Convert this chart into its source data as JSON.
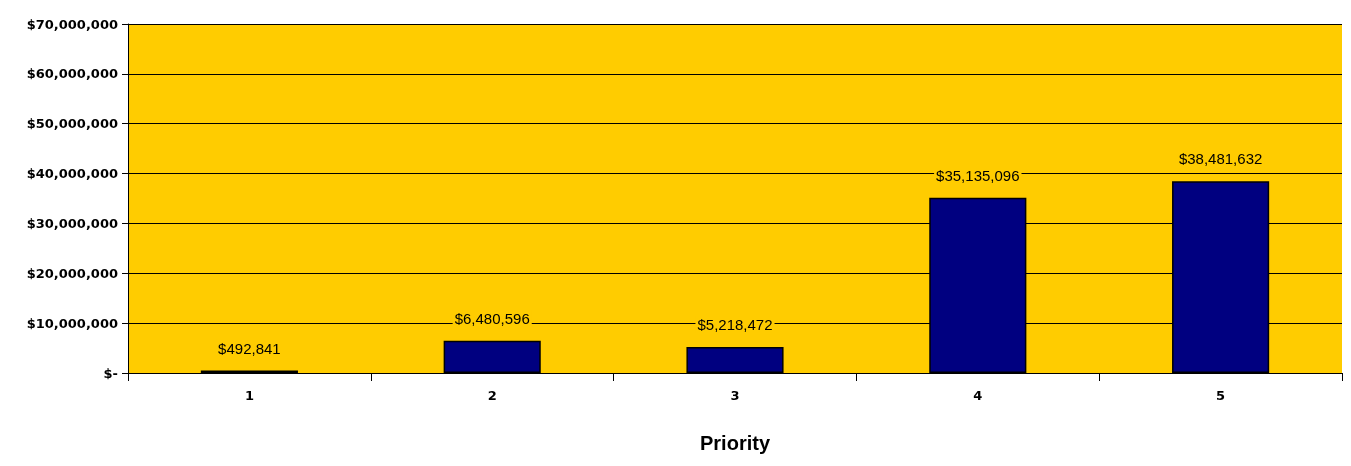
{
  "chart_data": {
    "type": "bar",
    "xlabel": "Priority",
    "categories": [
      "1",
      "2",
      "3",
      "4",
      "5"
    ],
    "series": [
      {
        "color": "#000080",
        "values": [
          492841,
          6480596,
          5218472,
          35135096,
          38481632
        ],
        "value_labels": [
          "$492,841",
          "$6,480,596",
          "$5,218,472",
          "$35,135,096",
          "$38,481,632"
        ]
      }
    ],
    "ylim": [
      0,
      70000000
    ],
    "yticks": [
      {
        "value": 0,
        "label": "$-"
      },
      {
        "value": 10000000,
        "label": "$10,000,000"
      },
      {
        "value": 20000000,
        "label": "$20,000,000"
      },
      {
        "value": 30000000,
        "label": "$30,000,000"
      },
      {
        "value": 40000000,
        "label": "$40,000,000"
      },
      {
        "value": 50000000,
        "label": "$50,000,000"
      },
      {
        "value": 60000000,
        "label": "$60,000,000"
      },
      {
        "value": 70000000,
        "label": "$70,000,000"
      }
    ],
    "grid": "y"
  }
}
